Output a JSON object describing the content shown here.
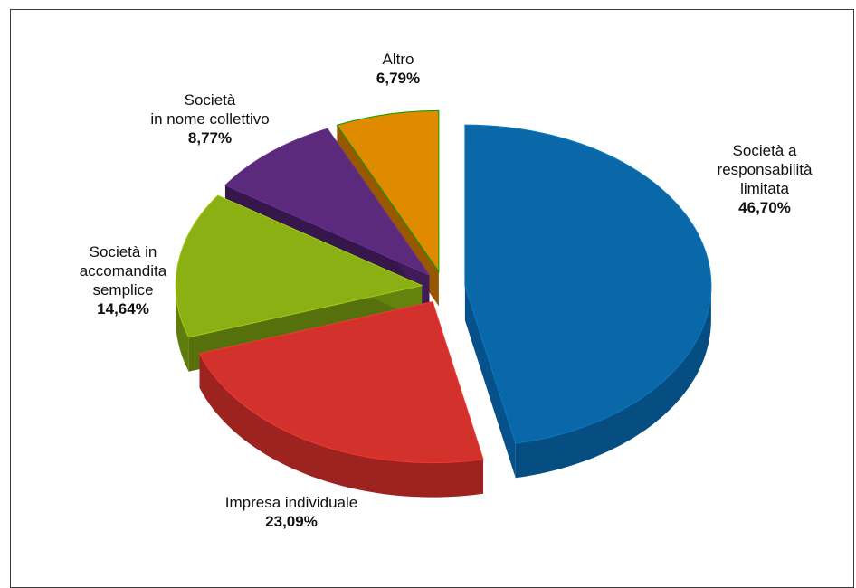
{
  "chart_data": {
    "type": "pie",
    "title": "",
    "exploded": true,
    "style": "3d",
    "slices": [
      {
        "label": "Società a\nresponsabilità\nlimitata",
        "pct_text": "46,70%",
        "value": 46.7,
        "color": "#0a68a8",
        "side_color": "#064d82"
      },
      {
        "label": "Impresa individuale",
        "pct_text": "23,09%",
        "value": 23.09,
        "color": "#d2312c",
        "side_color": "#9c231f"
      },
      {
        "label": "Società in\naccomandita\nsemplice",
        "pct_text": "14,64%",
        "value": 14.64,
        "color": "#8bb014",
        "side_color": "#5f7d0d"
      },
      {
        "label": "Società\nin nome collettivo",
        "pct_text": "8,77%",
        "value": 8.77,
        "color": "#5c2a7d",
        "side_color": "#3c1a54"
      },
      {
        "label": "Altro",
        "pct_text": "6,79%",
        "value": 6.79,
        "color": "#e08a00",
        "side_color": "#a86200"
      }
    ]
  }
}
